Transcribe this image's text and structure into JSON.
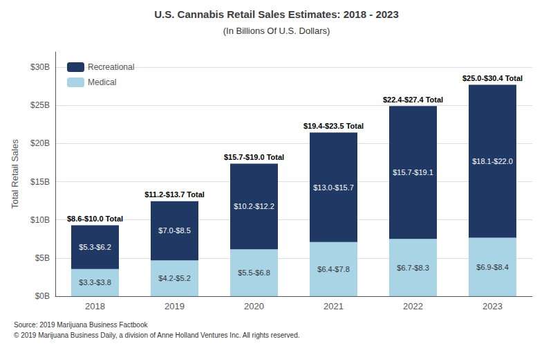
{
  "chart_data": {
    "type": "bar",
    "stacked": true,
    "title": "U.S. Cannabis Retail Sales Estimates: 2018 - 2023",
    "subtitle": "(In Billions Of U.S. Dollars)",
    "categories": [
      "2018",
      "2019",
      "2020",
      "2021",
      "2022",
      "2023"
    ],
    "series": [
      {
        "name": "Medical",
        "color": "#a8d4e6",
        "values": [
          3.55,
          4.7,
          6.15,
          7.1,
          7.5,
          7.65
        ],
        "value_labels": [
          "$3.3-$3.8",
          "$4.2-$5.2",
          "$5.5-$6.8",
          "$6.4-$7.8",
          "$6.7-$8.3",
          "$6.9-$8.4"
        ]
      },
      {
        "name": "Recreational",
        "color": "#1f3864",
        "values": [
          5.75,
          7.75,
          11.2,
          14.35,
          17.4,
          20.05
        ],
        "value_labels": [
          "$5.3-$6.2",
          "$7.0-$8.5",
          "$10.2-$12.2",
          "$13.0-$15.7",
          "$15.7-$19.1",
          "$18.1-$22.0"
        ]
      }
    ],
    "data_labels": true,
    "annotations": [
      {
        "x": "2018",
        "y": 9.3,
        "text": "$8.6-$10.0 Total"
      },
      {
        "x": "2019",
        "y": 12.45,
        "text": "$11.2-$13.7 Total"
      },
      {
        "x": "2020",
        "y": 17.35,
        "text": "$15.7-$19.0 Total"
      },
      {
        "x": "2021",
        "y": 21.45,
        "text": "$19.4-$23.5 Total"
      },
      {
        "x": "2022",
        "y": 24.9,
        "text": "$22.4-$27.4 Total"
      },
      {
        "x": "2023",
        "y": 27.7,
        "text": "$25.0-$30.4 Total"
      }
    ],
    "ylabel": "Total Retail Sales",
    "ylim": [
      0,
      32
    ],
    "yticks": [
      {
        "value": 0,
        "label": "$0B"
      },
      {
        "value": 5,
        "label": "$5B"
      },
      {
        "value": 10,
        "label": "$10B"
      },
      {
        "value": 15,
        "label": "$15B"
      },
      {
        "value": 20,
        "label": "$20B"
      },
      {
        "value": 25,
        "label": "$25B"
      },
      {
        "value": 30,
        "label": "$30B"
      }
    ],
    "grid": true,
    "legend": "upper left",
    "source": [
      "Source: 2019 Marijuana Business Factbook",
      "© 2019 Marijuana Business Daily, a division of Anne Holland Ventures Inc. All rights reserved."
    ]
  }
}
